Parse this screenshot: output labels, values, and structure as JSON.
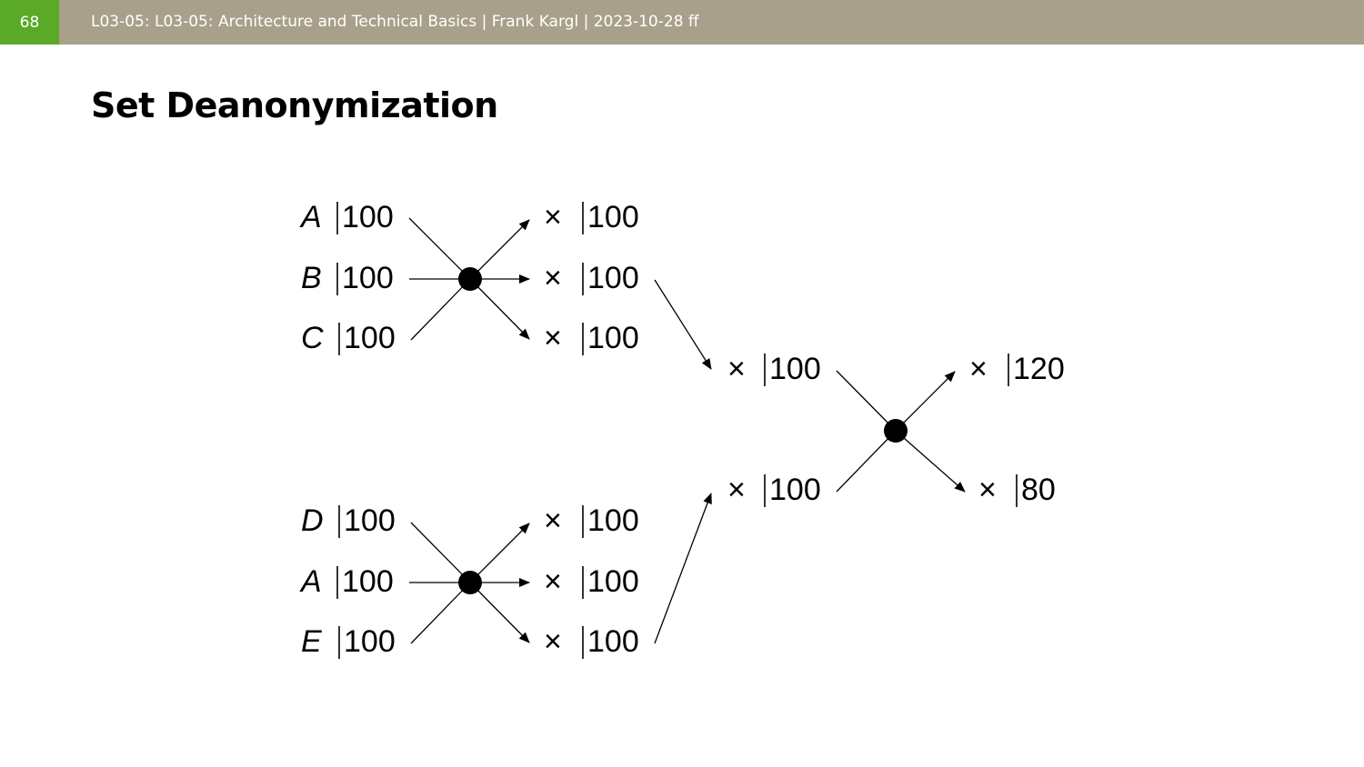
{
  "header": {
    "slide_number": "68",
    "text": "L03-05: L03-05: Architecture and Technical Basics | Frank Kargl | 2023-10-28 ff"
  },
  "title": "Set Deanonymization",
  "diagram": {
    "mix1_inputs": [
      {
        "id": "A",
        "count": "100"
      },
      {
        "id": "B",
        "count": "100"
      },
      {
        "id": "C",
        "count": "100"
      }
    ],
    "mix1_outputs": [
      {
        "id": "×",
        "count": "100"
      },
      {
        "id": "×",
        "count": "100"
      },
      {
        "id": "×",
        "count": "100"
      }
    ],
    "mix2_inputs": [
      {
        "id": "D",
        "count": "100"
      },
      {
        "id": "A",
        "count": "100"
      },
      {
        "id": "E",
        "count": "100"
      }
    ],
    "mix2_outputs": [
      {
        "id": "×",
        "count": "100"
      },
      {
        "id": "×",
        "count": "100"
      },
      {
        "id": "×",
        "count": "100"
      }
    ],
    "mix3_inputs": [
      {
        "id": "×",
        "count": "100"
      },
      {
        "id": "×",
        "count": "100"
      }
    ],
    "mix3_outputs": [
      {
        "id": "×",
        "count": "120"
      },
      {
        "id": "×",
        "count": "80"
      }
    ]
  }
}
